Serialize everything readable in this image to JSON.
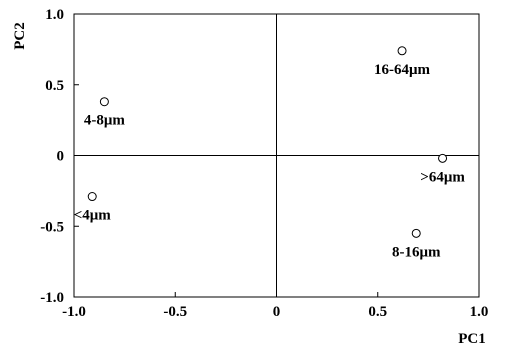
{
  "chart_data": {
    "type": "scatter",
    "title": "",
    "xlabel": "PC1",
    "ylabel": "PC2",
    "xlim": [
      -1.0,
      1.0
    ],
    "ylim": [
      -1.0,
      1.0
    ],
    "x_ticks": [
      {
        "value": -1.0,
        "label": "-1.0"
      },
      {
        "value": -0.5,
        "label": "-0.5"
      },
      {
        "value": 0,
        "label": "0"
      },
      {
        "value": 0.5,
        "label": "0.5"
      },
      {
        "value": 1.0,
        "label": "1.0"
      }
    ],
    "y_ticks": [
      {
        "value": 1.0,
        "label": "1.0"
      },
      {
        "value": 0.5,
        "label": "0.5"
      },
      {
        "value": 0,
        "label": "0"
      },
      {
        "value": -0.5,
        "label": "-0.5"
      },
      {
        "value": -1.0,
        "label": "-1.0"
      }
    ],
    "grid": false,
    "zero_lines": true,
    "points": [
      {
        "label": "4-8μm",
        "x": -0.85,
        "y": 0.38,
        "label_anchor": "below"
      },
      {
        "label": "16-64μm",
        "x": 0.62,
        "y": 0.74,
        "label_anchor": "below"
      },
      {
        "label": ">64μm",
        "x": 0.82,
        "y": -0.02,
        "label_anchor": "below"
      },
      {
        "label": "<4μm",
        "x": -0.91,
        "y": -0.29,
        "label_anchor": "below"
      },
      {
        "label": "8-16μm",
        "x": 0.69,
        "y": -0.55,
        "label_anchor": "below"
      }
    ]
  }
}
